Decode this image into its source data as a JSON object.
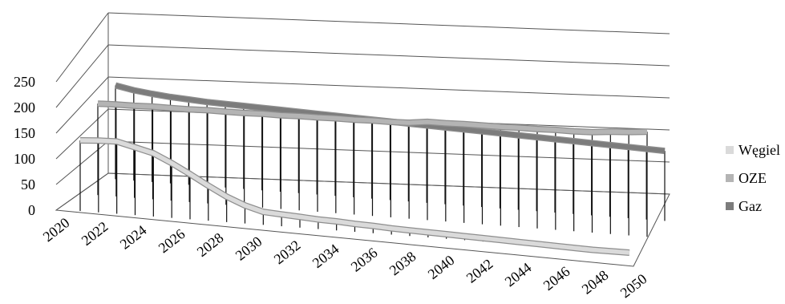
{
  "chart_data": {
    "type": "line",
    "style": "3d",
    "x": [
      2020,
      2021,
      2022,
      2023,
      2024,
      2025,
      2026,
      2027,
      2028,
      2029,
      2030,
      2031,
      2032,
      2033,
      2034,
      2035,
      2036,
      2037,
      2038,
      2039,
      2040,
      2041,
      2042,
      2043,
      2044,
      2045,
      2046,
      2047,
      2048,
      2049,
      2050
    ],
    "x_tick_labels": [
      "2020",
      "2022",
      "2024",
      "2026",
      "2028",
      "2030",
      "2032",
      "2034",
      "2036",
      "2038",
      "2040",
      "2042",
      "2044",
      "2046",
      "2048",
      "2050"
    ],
    "ylim": [
      0,
      250
    ],
    "y_ticks": [
      0,
      50,
      100,
      150,
      200,
      250
    ],
    "grid": true,
    "legend_position": "right",
    "series": [
      {
        "name": "Węgiel",
        "color": "#dadada",
        "values": [
          125,
          127,
          128,
          120,
          112,
          97,
          80,
          62,
          45,
          32,
          23,
          21,
          19,
          17,
          16,
          14,
          13,
          11,
          10,
          9,
          8,
          7,
          6,
          5,
          4,
          3,
          2,
          1,
          0,
          0,
          0
        ]
      },
      {
        "name": "OZE",
        "color": "#b4b4b4",
        "values": [
          162,
          163,
          163,
          164,
          164,
          164,
          165,
          165,
          165,
          166,
          166,
          167,
          167,
          168,
          168,
          169,
          169,
          170,
          174,
          174,
          175,
          175,
          175,
          176,
          176,
          177,
          177,
          178,
          181,
          183,
          186
        ]
      },
      {
        "name": "Gaz",
        "color": "#7c7c7c",
        "values": [
          166,
          160,
          156,
          153,
          151,
          149,
          148,
          147,
          146,
          145,
          144,
          143,
          142,
          141,
          140,
          139,
          138,
          137,
          136,
          135,
          134,
          133,
          132,
          131,
          130,
          129,
          128,
          127,
          126,
          125,
          124
        ]
      }
    ]
  }
}
